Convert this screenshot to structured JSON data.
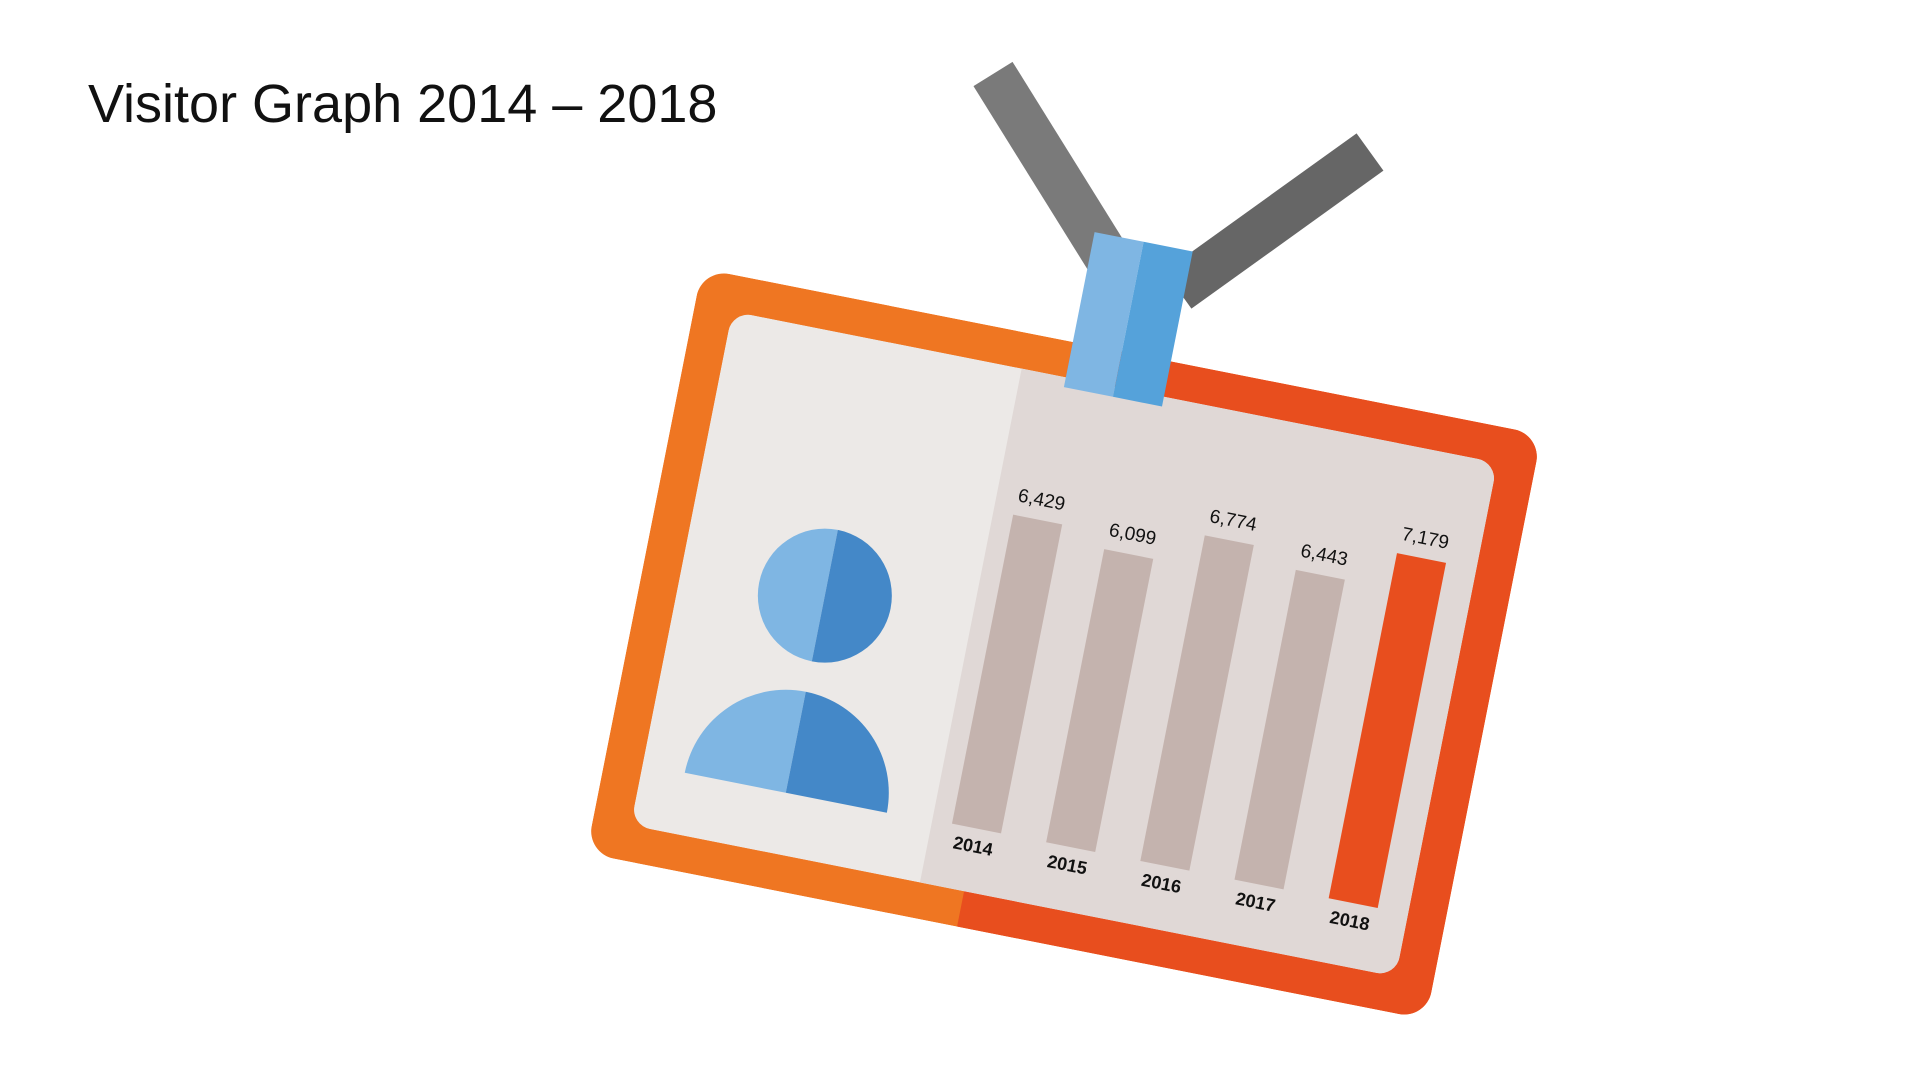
{
  "chart_data": {
    "type": "bar",
    "title": "Visitor Graph 2014 – 2018",
    "categories": [
      "2014",
      "2015",
      "2016",
      "2017",
      "2018"
    ],
    "values": [
      6429,
      6099,
      6774,
      6443,
      7179
    ],
    "value_labels": [
      "6,429",
      "6,099",
      "6,774",
      "6,443",
      "7,179"
    ],
    "colors": [
      "#c4b3ae",
      "#c4b3ae",
      "#c4b3ae",
      "#c4b3ae",
      "#e84e1e"
    ]
  }
}
